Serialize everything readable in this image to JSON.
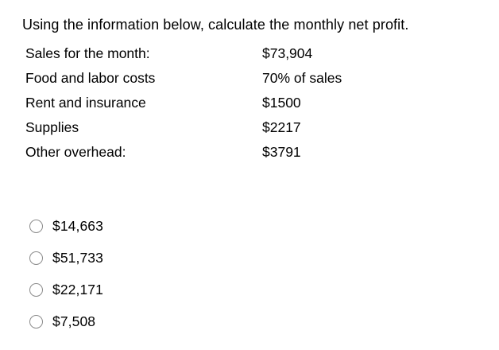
{
  "question": {
    "title": "Using the information below, calculate the monthly net profit."
  },
  "info_table": {
    "rows": [
      {
        "label": "Sales for the month:",
        "value": "$73,904"
      },
      {
        "label": "Food and labor costs",
        "value": "70% of sales"
      },
      {
        "label": "Rent and insurance",
        "value": "$1500"
      },
      {
        "label": "Supplies",
        "value": "$2217"
      },
      {
        "label": "Other overhead:",
        "value": "$3791"
      }
    ]
  },
  "options": [
    {
      "label": "$14,663"
    },
    {
      "label": "$51,733"
    },
    {
      "label": "$22,171"
    },
    {
      "label": "$7,508"
    }
  ],
  "colors": {
    "background": "#ffffff",
    "text": "#000000",
    "radio_border": "#8b8b8b"
  }
}
